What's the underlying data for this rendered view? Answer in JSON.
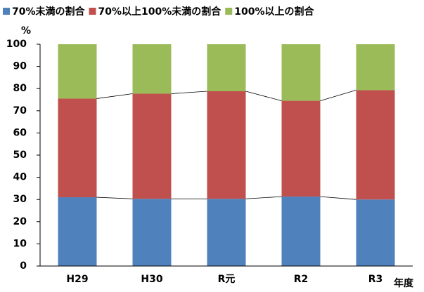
{
  "chart_data": {
    "type": "stacked_bar",
    "categories": [
      "H29",
      "H30",
      "R元",
      "R2",
      "R3"
    ],
    "series": [
      {
        "name": "70%未満の割合",
        "color": "#4f81bd",
        "values": [
          31,
          30.3,
          30.3,
          31.3,
          30
        ]
      },
      {
        "name": "70%以上100%未満の割合",
        "color": "#c0504d",
        "values": [
          44.5,
          47.4,
          48.5,
          43.2,
          49.3
        ]
      },
      {
        "name": "100%以上の割合",
        "color": "#9bbb59",
        "values": [
          24.5,
          22.3,
          21.2,
          25.5,
          20.7
        ]
      }
    ],
    "y_label": "%",
    "x_label": "年度",
    "ylim": [
      0,
      100
    ],
    "yticks": [
      0,
      10,
      20,
      30,
      40,
      50,
      60,
      70,
      80,
      90,
      100
    ],
    "legend": "top"
  }
}
